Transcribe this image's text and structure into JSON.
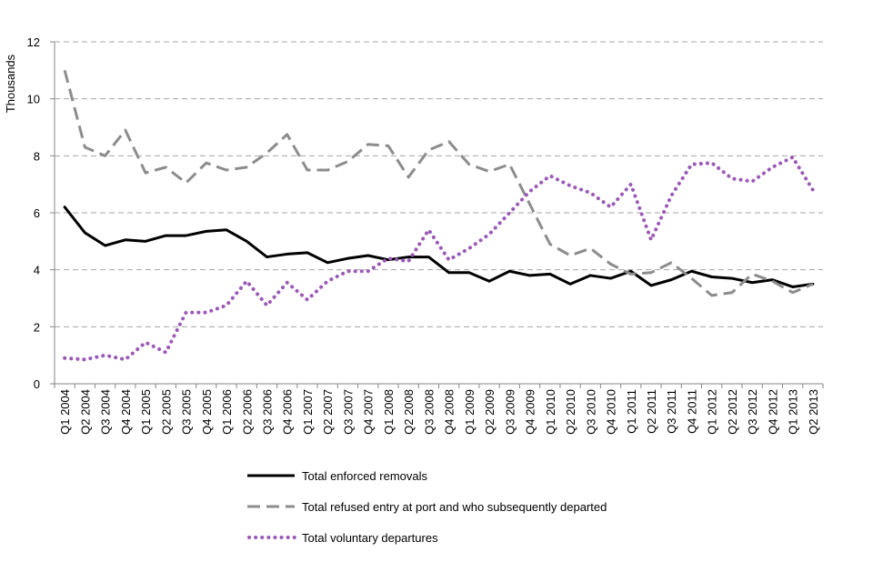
{
  "chart_data": {
    "type": "line",
    "ylabel": "Thousands",
    "xlabel": "",
    "title": "",
    "ylim": [
      0,
      12
    ],
    "yticks": [
      0,
      2,
      4,
      6,
      8,
      10,
      12
    ],
    "grid": "horizontal-dashed",
    "legend_position": "bottom",
    "categories": [
      "Q1 2004",
      "Q2 2004",
      "Q3 2004",
      "Q4 2004",
      "Q1 2005",
      "Q2 2005",
      "Q3 2005",
      "Q4 2005",
      "Q1 2006",
      "Q2 2006",
      "Q3 2006",
      "Q4 2006",
      "Q1 2007",
      "Q2 2007",
      "Q3 2007",
      "Q4 2007",
      "Q1 2008",
      "Q2 2008",
      "Q3 2008",
      "Q4 2008",
      "Q1 2009",
      "Q2 2009",
      "Q3 2009",
      "Q4 2009",
      "Q1 2010",
      "Q2 2010",
      "Q3 2010",
      "Q4 2010",
      "Q1 2011",
      "Q2 2011",
      "Q3 2011",
      "Q4 2011",
      "Q1 2012",
      "Q2 2012",
      "Q3 2012",
      "Q4 2012",
      "Q1 2013",
      "Q2 2013"
    ],
    "series": [
      {
        "name": "Total enforced removals",
        "color": "#000000",
        "style": "solid",
        "values": [
          6.2,
          5.3,
          4.85,
          5.05,
          5.0,
          5.2,
          5.2,
          5.35,
          5.4,
          5.0,
          4.45,
          4.55,
          4.6,
          4.25,
          4.4,
          4.5,
          4.35,
          4.45,
          4.45,
          3.9,
          3.9,
          3.6,
          3.95,
          3.8,
          3.85,
          3.5,
          3.8,
          3.7,
          3.95,
          3.45,
          3.65,
          3.95,
          3.75,
          3.7,
          3.55,
          3.65,
          3.4,
          3.5
        ]
      },
      {
        "name": "Total refused entry at port and who subsequently departed",
        "color": "#8c8c8c",
        "style": "dashed",
        "values": [
          11.0,
          8.3,
          8.0,
          8.9,
          7.4,
          7.6,
          7.05,
          7.75,
          7.5,
          7.6,
          8.1,
          8.75,
          7.5,
          7.5,
          7.8,
          8.4,
          8.35,
          7.25,
          8.2,
          8.5,
          7.7,
          7.45,
          7.7,
          6.3,
          4.9,
          4.5,
          4.75,
          4.2,
          3.85,
          3.9,
          4.25,
          3.7,
          3.1,
          3.2,
          3.85,
          3.6,
          3.2,
          3.5
        ]
      },
      {
        "name": "Total voluntary departures",
        "color": "#9b59b6",
        "style": "dotted",
        "values": [
          0.9,
          0.85,
          1.0,
          0.85,
          1.45,
          1.1,
          2.5,
          2.5,
          2.75,
          3.6,
          2.75,
          3.55,
          2.95,
          3.6,
          3.95,
          3.95,
          4.4,
          4.3,
          5.4,
          4.35,
          4.75,
          5.25,
          6.0,
          6.75,
          7.3,
          6.95,
          6.7,
          6.2,
          7.0,
          5.05,
          6.6,
          7.7,
          7.75,
          7.2,
          7.1,
          7.6,
          7.95,
          6.8
        ]
      }
    ]
  }
}
